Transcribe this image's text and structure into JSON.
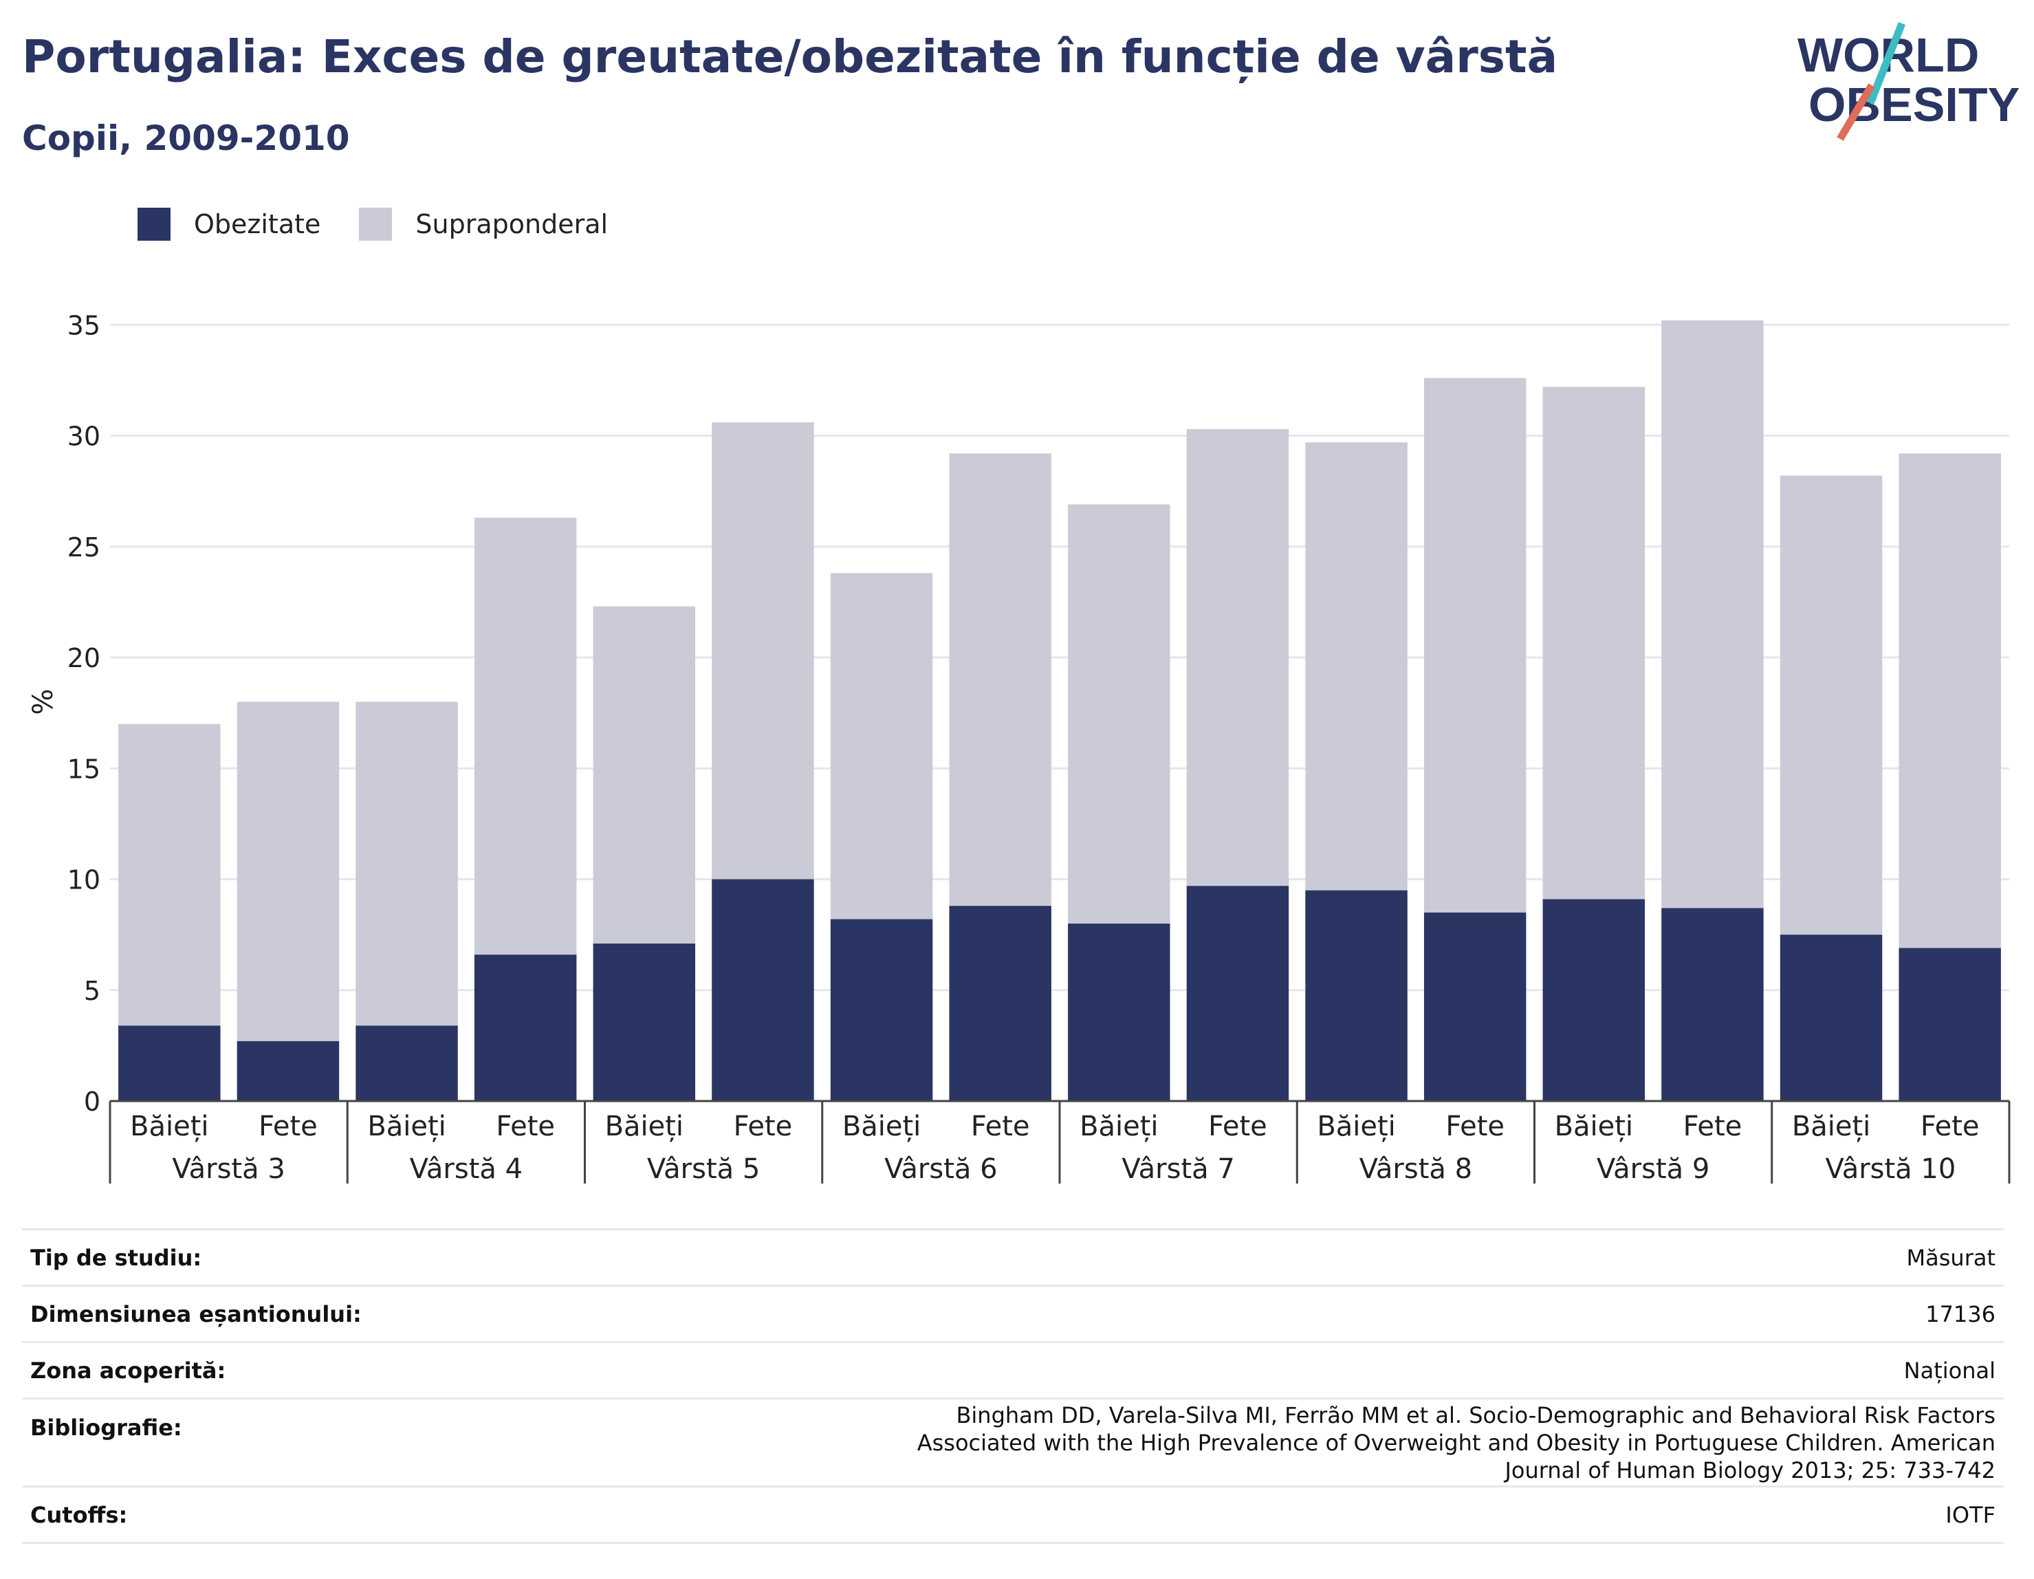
{
  "header": {
    "title": "Portugalia: Exces de greutate/obezitate în funcție de vârstă",
    "subtitle": "Copii, 2009-2010"
  },
  "logo": {
    "line1": "WORLD",
    "line2": "OBESITY",
    "accent_colors": [
      "#3dbcc4",
      "#e06c5a"
    ]
  },
  "colors": {
    "obesity": "#2a3563",
    "overweight": "#cacbd7",
    "grid": "#e6e7ec",
    "axis": "#444444"
  },
  "legend": [
    {
      "label": "Obezitate",
      "color": "#2a3563"
    },
    {
      "label": "Supraponderal",
      "color": "#cacbd7"
    }
  ],
  "chart_data": {
    "type": "bar",
    "stacked": true,
    "ylabel": "%",
    "ylim": [
      0,
      36
    ],
    "yticks": [
      0,
      5,
      10,
      15,
      20,
      25,
      30,
      35
    ],
    "grid": true,
    "legend_position": "top-left",
    "groups": [
      "Vârstă 3",
      "Vârstă 4",
      "Vârstă 5",
      "Vârstă 6",
      "Vârstă 7",
      "Vârstă 8",
      "Vârstă 9",
      "Vârstă 10"
    ],
    "subcategories": [
      "Băieți",
      "Fete"
    ],
    "series": [
      {
        "name": "Obezitate",
        "values": [
          3.4,
          2.7,
          3.4,
          6.6,
          7.1,
          10.0,
          8.2,
          8.8,
          8.0,
          9.7,
          9.5,
          8.5,
          9.1,
          8.7,
          7.5,
          6.9
        ]
      },
      {
        "name": "Supraponderal",
        "values": [
          13.6,
          15.3,
          14.6,
          19.7,
          15.2,
          20.6,
          15.6,
          20.4,
          18.9,
          20.6,
          20.2,
          24.1,
          23.1,
          26.5,
          20.7,
          22.3
        ]
      }
    ]
  },
  "info": [
    {
      "label": "Tip de studiu:",
      "value": "Măsurat"
    },
    {
      "label": "Dimensiunea eșantionului:",
      "value": "17136"
    },
    {
      "label": "Zona acoperită:",
      "value": "Național"
    },
    {
      "label": "Bibliografie:",
      "value": "Bingham DD, Varela-Silva MI, Ferrão MM et al. Socio-Demographic and Behavioral Risk Factors Associated with the High Prevalence of Overweight and Obesity in Portuguese Children. American Journal of Human Biology 2013; 25: 733-742"
    },
    {
      "label": "Cutoffs:",
      "value": "IOTF"
    }
  ]
}
